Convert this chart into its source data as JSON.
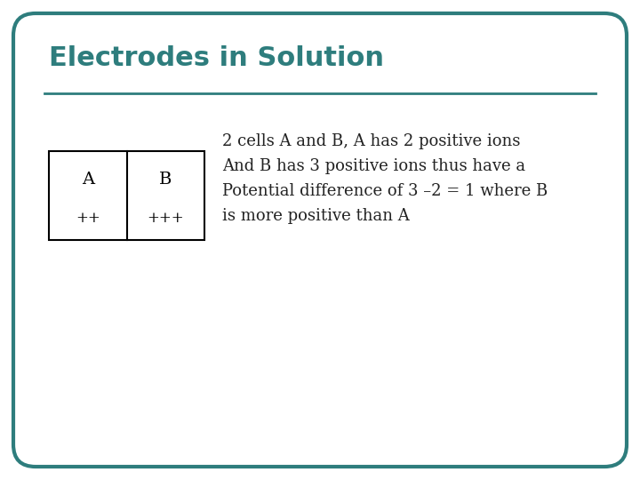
{
  "title": "Electrodes in Solution",
  "title_color": "#2e7d7d",
  "title_fontsize": 22,
  "title_fontweight": "bold",
  "background_color": "#ffffff",
  "border_color": "#2e7d7d",
  "border_linewidth": 3,
  "divider_color": "#2e7d7d",
  "divider_linewidth": 2,
  "cell_A_label": "A",
  "cell_B_label": "B",
  "cell_A_ions": "++",
  "cell_B_ions": "+++",
  "cell_text_color": "#000000",
  "cell_label_fontsize": 14,
  "cell_ions_fontsize": 12,
  "body_text_line1": "2 cells A and B, A has 2 positive ions",
  "body_text_line2": "And B has 3 positive ions thus have a",
  "body_text_line3": "Potential difference of 3 –2 = 1 where B",
  "body_text_line4": "is more positive than A",
  "body_fontsize": 13,
  "body_text_color": "#222222"
}
